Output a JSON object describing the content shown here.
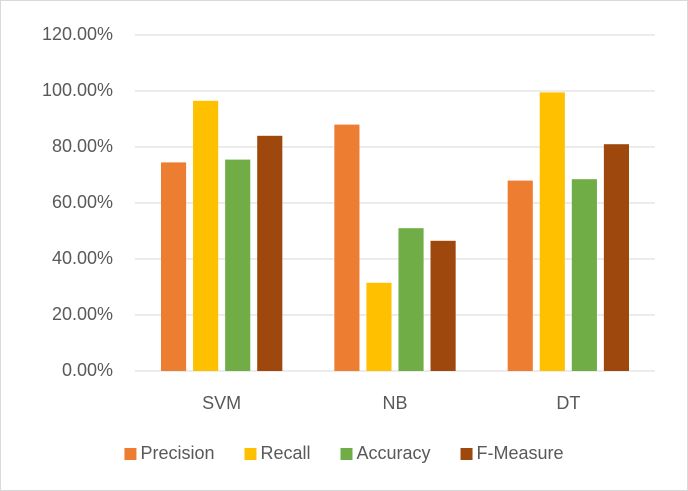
{
  "chart_data": {
    "type": "bar",
    "categories": [
      "SVM",
      "NB",
      "DT"
    ],
    "series": [
      {
        "name": "Precision",
        "color": "#ed7d31",
        "values": [
          74.5,
          88,
          68
        ]
      },
      {
        "name": "Recall",
        "color": "#ffc000",
        "values": [
          96.5,
          31.5,
          99.5
        ]
      },
      {
        "name": "Accuracy",
        "color": "#70ad47",
        "values": [
          75.5,
          51,
          68.5
        ]
      },
      {
        "name": "F-Measure",
        "color": "#9e480e",
        "values": [
          84,
          46.5,
          81
        ]
      }
    ],
    "ylim": [
      0,
      120
    ],
    "yticks": [
      {
        "value": 0,
        "label": "0.00%"
      },
      {
        "value": 20,
        "label": "20.00%"
      },
      {
        "value": 40,
        "label": "40.00%"
      },
      {
        "value": 60,
        "label": "60.00%"
      },
      {
        "value": 80,
        "label": "80.00%"
      },
      {
        "value": 100,
        "label": "100.00%"
      },
      {
        "value": 120,
        "label": "120.00%"
      }
    ],
    "grid": true,
    "legend": "bottom"
  }
}
